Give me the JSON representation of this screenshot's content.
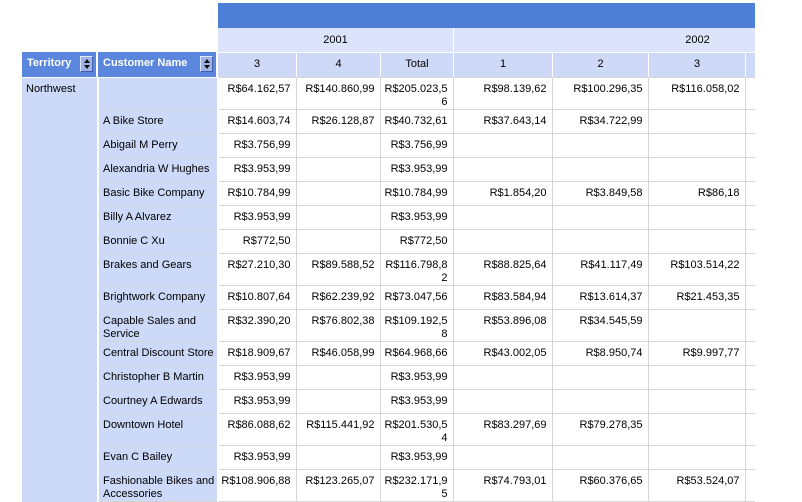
{
  "table": {
    "corner_headers": [
      {
        "label": "Territory"
      },
      {
        "label": "Customer Name"
      }
    ],
    "year_groups": [
      {
        "label": "2001"
      },
      {
        "label": "2002"
      }
    ],
    "quarter_headers": [
      "3",
      "4",
      "Total",
      "1",
      "2",
      "3"
    ],
    "territory": "Northwest",
    "rows": [
      {
        "customer": "",
        "values": [
          "R$64.162,57",
          "R$140.860,99",
          "R$205.023,56",
          "R$98.139,62",
          "R$100.296,35",
          "R$116.058,02"
        ]
      },
      {
        "customer": "A Bike Store",
        "values": [
          "R$14.603,74",
          "R$26.128,87",
          "R$40.732,61",
          "R$37.643,14",
          "R$34.722,99",
          ""
        ]
      },
      {
        "customer": "Abigail M Perry",
        "values": [
          "R$3.756,99",
          "",
          "R$3.756,99",
          "",
          "",
          ""
        ]
      },
      {
        "customer": "Alexandria W Hughes",
        "values": [
          "R$3.953,99",
          "",
          "R$3.953,99",
          "",
          "",
          ""
        ]
      },
      {
        "customer": "Basic Bike Company",
        "values": [
          "R$10.784,99",
          "",
          "R$10.784,99",
          "R$1.854,20",
          "R$3.849,58",
          "R$86,18"
        ]
      },
      {
        "customer": "Billy A Alvarez",
        "values": [
          "R$3.953,99",
          "",
          "R$3.953,99",
          "",
          "",
          ""
        ]
      },
      {
        "customer": "Bonnie C Xu",
        "values": [
          "R$772,50",
          "",
          "R$772,50",
          "",
          "",
          ""
        ]
      },
      {
        "customer": "Brakes and Gears",
        "values": [
          "R$27.210,30",
          "R$89.588,52",
          "R$116.798,82",
          "R$88.825,64",
          "R$41.117,49",
          "R$103.514,22"
        ]
      },
      {
        "customer": "Brightwork Company",
        "values": [
          "R$10.807,64",
          "R$62.239,92",
          "R$73.047,56",
          "R$83.584,94",
          "R$13.614,37",
          "R$21.453,35"
        ]
      },
      {
        "customer": "Capable Sales and Service",
        "values": [
          "R$32.390,20",
          "R$76.802,38",
          "R$109.192,58",
          "R$53.896,08",
          "R$34.545,59",
          ""
        ]
      },
      {
        "customer": "Central Discount Store",
        "values": [
          "R$18.909,67",
          "R$46.058,99",
          "R$64.968,66",
          "R$43.002,05",
          "R$8.950,74",
          "R$9.997,77"
        ]
      },
      {
        "customer": "Christopher B Martin",
        "values": [
          "R$3.953,99",
          "",
          "R$3.953,99",
          "",
          "",
          ""
        ]
      },
      {
        "customer": "Courtney A Edwards",
        "values": [
          "R$3.953,99",
          "",
          "R$3.953,99",
          "",
          "",
          ""
        ]
      },
      {
        "customer": "Downtown Hotel",
        "values": [
          "R$86.088,62",
          "R$115.441,92",
          "R$201.530,54",
          "R$83.297,69",
          "R$79.278,35",
          ""
        ]
      },
      {
        "customer": "Evan C Bailey",
        "values": [
          "R$3.953,99",
          "",
          "R$3.953,99",
          "",
          "",
          ""
        ]
      },
      {
        "customer": "Fashionable Bikes and Accessories",
        "values": [
          "R$108.906,88",
          "R$123.265,07",
          "R$232.171,95",
          "R$74.793,01",
          "R$60.376,65",
          "R$53.524,07"
        ]
      }
    ]
  },
  "icons": {
    "sort": "sort-arrows-icon"
  },
  "colors": {
    "header_bar": "#4e80d8",
    "header_cell_bg": "#5b86de",
    "header_cell_text": "#ffffff",
    "year_row_bg": "#dbe4fb",
    "quarter_row_bg": "#cdd9f7",
    "group_cell_bg": "#ccd9f8",
    "grid_line": "#d6d6d6",
    "cell_text": "#000000"
  }
}
